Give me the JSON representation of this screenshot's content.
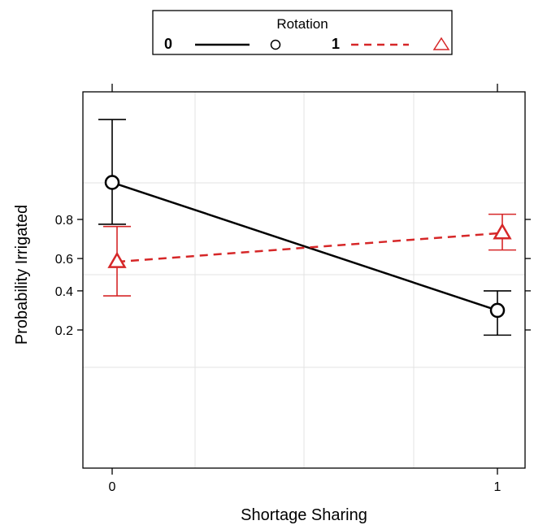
{
  "chart_data": {
    "type": "line",
    "title": "",
    "xlabel": "Shortage Sharing",
    "ylabel": "Probability Irrigated",
    "x": [
      0,
      1
    ],
    "x_tick_labels": [
      "0",
      "1"
    ],
    "y_ticks": [
      0.2,
      0.4,
      0.6,
      0.8
    ],
    "y_tick_labels": [
      "0.2",
      "0.4",
      "0.6",
      "0.8"
    ],
    "xlim": [
      -0.07,
      1.06
    ],
    "grid": true,
    "legend": {
      "title": "Rotation",
      "placement": "top",
      "entries": [
        {
          "label": "0",
          "style": "solid",
          "marker": "circle",
          "color": "#000000"
        },
        {
          "label": "1",
          "style": "dashed",
          "marker": "triangle",
          "color": "#d62728"
        }
      ]
    },
    "series": [
      {
        "name": "0",
        "color": "#000000",
        "line_style": "solid",
        "marker": "circle",
        "values": [
          0.91,
          0.29
        ],
        "ci_lower": [
          0.78,
          0.18
        ],
        "ci_upper": [
          0.98,
          0.4
        ]
      },
      {
        "name": "1",
        "color": "#d62728",
        "line_style": "dashed",
        "marker": "triangle",
        "values": [
          0.58,
          0.74
        ],
        "ci_lower": [
          0.37,
          0.65
        ],
        "ci_upper": [
          0.77,
          0.82
        ]
      }
    ]
  }
}
